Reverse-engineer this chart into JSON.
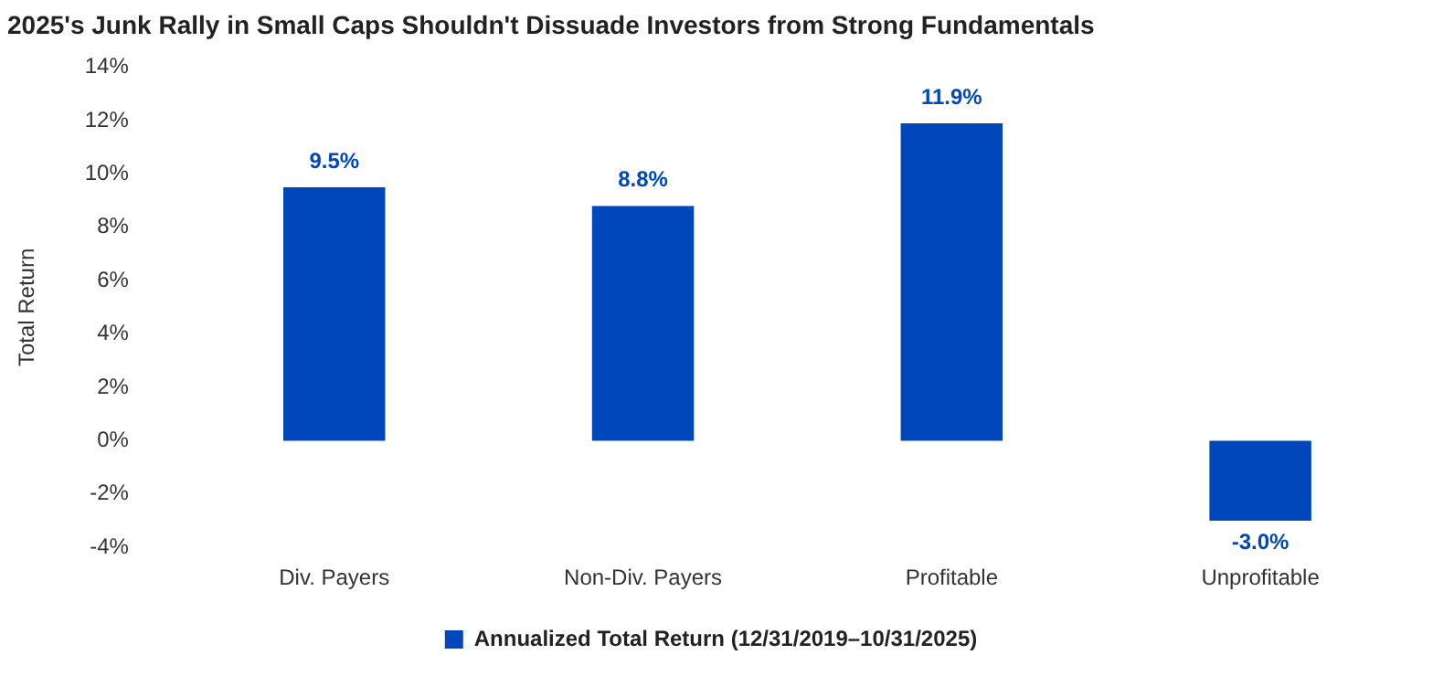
{
  "chart_data": {
    "type": "bar",
    "title": "2025's Junk Rally in Small Caps Shouldn't Dissuade Investors from Strong Fundamentals",
    "ylabel": "Total Return",
    "categories": [
      "Div. Payers",
      "Non-Div. Payers",
      "Profitable",
      "Unprofitable"
    ],
    "series": [
      {
        "name": "Annualized Total Return (12/31/2019–10/31/2025)",
        "color": "#0047bb",
        "values": [
          9.5,
          8.8,
          11.9,
          -3.0
        ],
        "value_labels": [
          "9.5%",
          "8.8%",
          "11.9%",
          "-3.0%"
        ]
      }
    ],
    "ylim": [
      -4,
      14
    ],
    "yticks": [
      {
        "value": -4,
        "label": "-4%"
      },
      {
        "value": -2,
        "label": "-2%"
      },
      {
        "value": 0,
        "label": "0%"
      },
      {
        "value": 2,
        "label": "2%"
      },
      {
        "value": 4,
        "label": "4%"
      },
      {
        "value": 6,
        "label": "6%"
      },
      {
        "value": 8,
        "label": "8%"
      },
      {
        "value": 10,
        "label": "10%"
      },
      {
        "value": 12,
        "label": "12%"
      },
      {
        "value": 14,
        "label": "14%"
      }
    ],
    "grid": false,
    "legend": "bottom"
  }
}
